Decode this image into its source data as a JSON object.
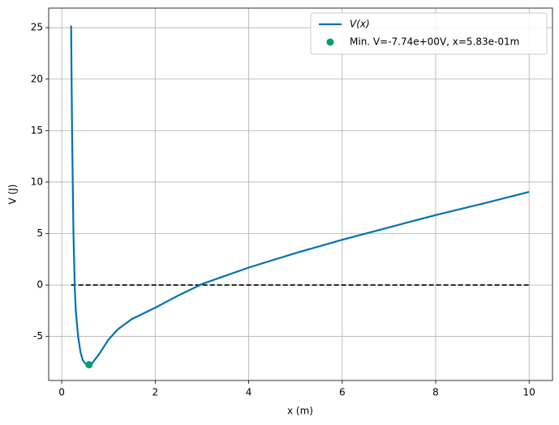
{
  "chart_data": {
    "type": "line",
    "xlabel": "x (m)",
    "ylabel": "V (J)",
    "xlim": [
      -0.28,
      10.5
    ],
    "ylim": [
      -9.27,
      26.9
    ],
    "xticks": [
      0,
      2,
      4,
      6,
      8,
      10
    ],
    "yticks": [
      -5,
      0,
      5,
      10,
      15,
      20,
      25
    ],
    "grid": true,
    "legend": "upper right",
    "series": [
      {
        "name": "V(x)",
        "color": "#0072b2",
        "x": [
          0.2,
          0.22,
          0.25,
          0.28,
          0.3,
          0.35,
          0.4,
          0.45,
          0.5,
          0.55,
          0.583,
          0.65,
          0.8,
          1.0,
          1.2,
          1.5,
          2,
          2.5,
          3,
          3.5,
          4,
          5,
          6,
          7,
          8,
          9,
          10
        ],
        "values": [
          25.2,
          15,
          5,
          -0.5,
          -2.5,
          -5,
          -6.5,
          -7.3,
          -7.6,
          -7.7,
          -7.74,
          -7.6,
          -6.7,
          -5.3,
          -4.3,
          -3.3,
          -2.2,
          -1.0,
          0.1,
          0.9,
          1.7,
          3.1,
          4.4,
          5.6,
          6.8,
          7.9,
          9.05
        ]
      }
    ],
    "minimum": {
      "name": "Min. V=-7.74e+00V, x=5.83e-01m",
      "color": "#009e73",
      "x": 0.583,
      "value": -7.74
    },
    "zero_line": {
      "x": [
        0.2,
        10
      ],
      "values": [
        0,
        0
      ],
      "color": "#000000"
    }
  }
}
